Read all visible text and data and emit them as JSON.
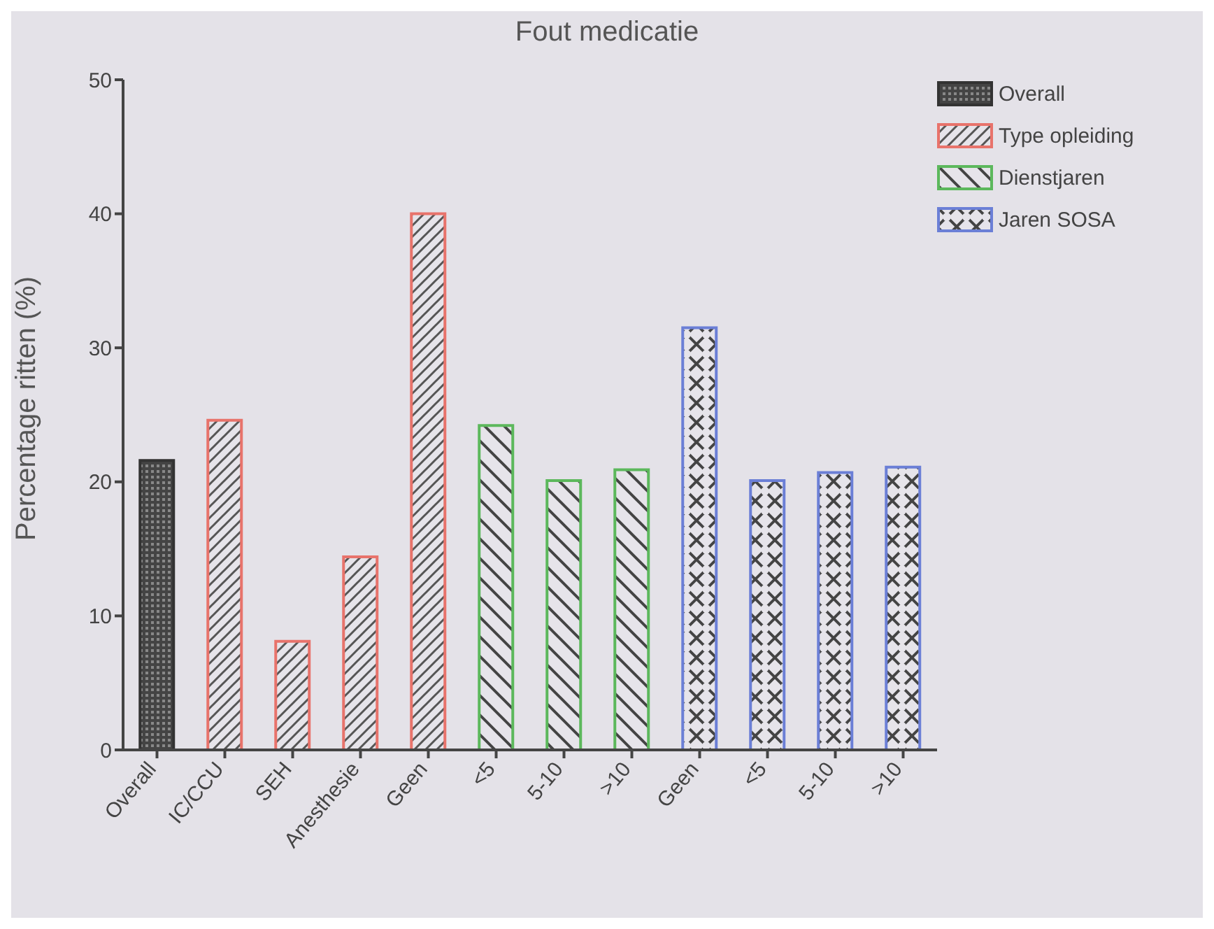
{
  "chart_data": {
    "type": "bar",
    "title": "Fout medicatie",
    "ylabel": "Percentage ritten (%)",
    "categories": [
      "Overall",
      "IC/CCU",
      "SEH",
      "Anesthesie",
      "Geen",
      "<5",
      "5-10",
      ">10",
      "Geen",
      "<5",
      "5-10",
      ">10"
    ],
    "series": [
      {
        "name": "Overall",
        "color": "#333333",
        "values": [
          21.6,
          null,
          null,
          null,
          null,
          null,
          null,
          null,
          null,
          null,
          null,
          null
        ]
      },
      {
        "name": "Type opleiding",
        "color": "#e8736b",
        "values": [
          null,
          24.6,
          8.1,
          14.4,
          40,
          null,
          null,
          null,
          null,
          null,
          null,
          null
        ]
      },
      {
        "name": "Dienstjaren",
        "color": "#5cb85c",
        "values": [
          null,
          null,
          null,
          null,
          null,
          24.2,
          20.1,
          20.9,
          null,
          null,
          null,
          null
        ]
      },
      {
        "name": "Jaren SOSA",
        "color": "#6b7fd6",
        "values": [
          null,
          null,
          null,
          null,
          null,
          null,
          null,
          null,
          31.5,
          20.1,
          20.7,
          21.1
        ]
      }
    ],
    "ylim": [
      0,
      50
    ],
    "yticks": [
      0,
      10,
      20,
      30,
      40,
      50
    ],
    "grid": false,
    "legend": "top right"
  }
}
